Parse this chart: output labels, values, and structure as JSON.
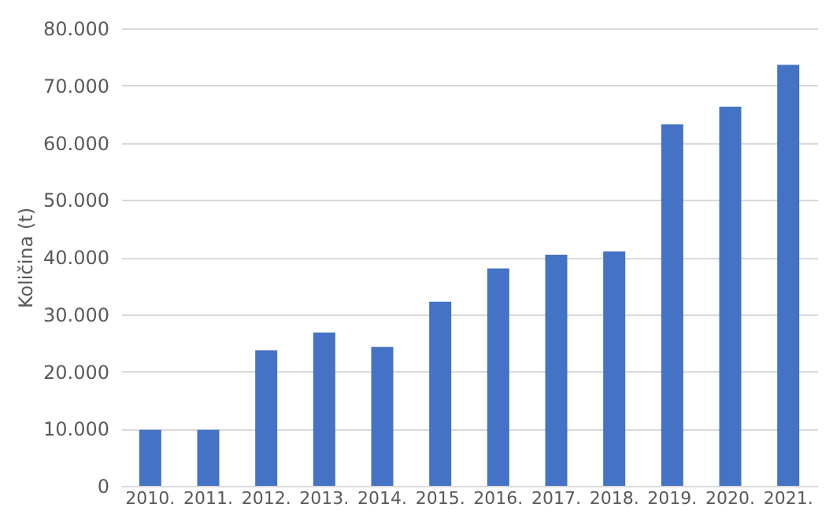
{
  "chart_data": {
    "type": "bar",
    "ylabel": "Količina (t)",
    "categories": [
      "2010.",
      "2011.",
      "2012.",
      "2013.",
      "2014.",
      "2015.",
      "2016.",
      "2017.",
      "2018.",
      "2019.",
      "2020.",
      "2021."
    ],
    "values": [
      9800,
      9800,
      23700,
      26800,
      24300,
      32200,
      38000,
      40400,
      41000,
      63200,
      66300,
      73600
    ],
    "color": "#4472c4",
    "ylim": [
      0,
      80000
    ],
    "yticks": [
      {
        "value": 0,
        "label": "0"
      },
      {
        "value": 10000,
        "label": "10.000"
      },
      {
        "value": 20000,
        "label": "20.000"
      },
      {
        "value": 30000,
        "label": "30.000"
      },
      {
        "value": 40000,
        "label": "40.000"
      },
      {
        "value": 50000,
        "label": "50.000"
      },
      {
        "value": 60000,
        "label": "60.000"
      },
      {
        "value": 70000,
        "label": "70.000"
      },
      {
        "value": 80000,
        "label": "80.000"
      }
    ],
    "grid": "y"
  }
}
